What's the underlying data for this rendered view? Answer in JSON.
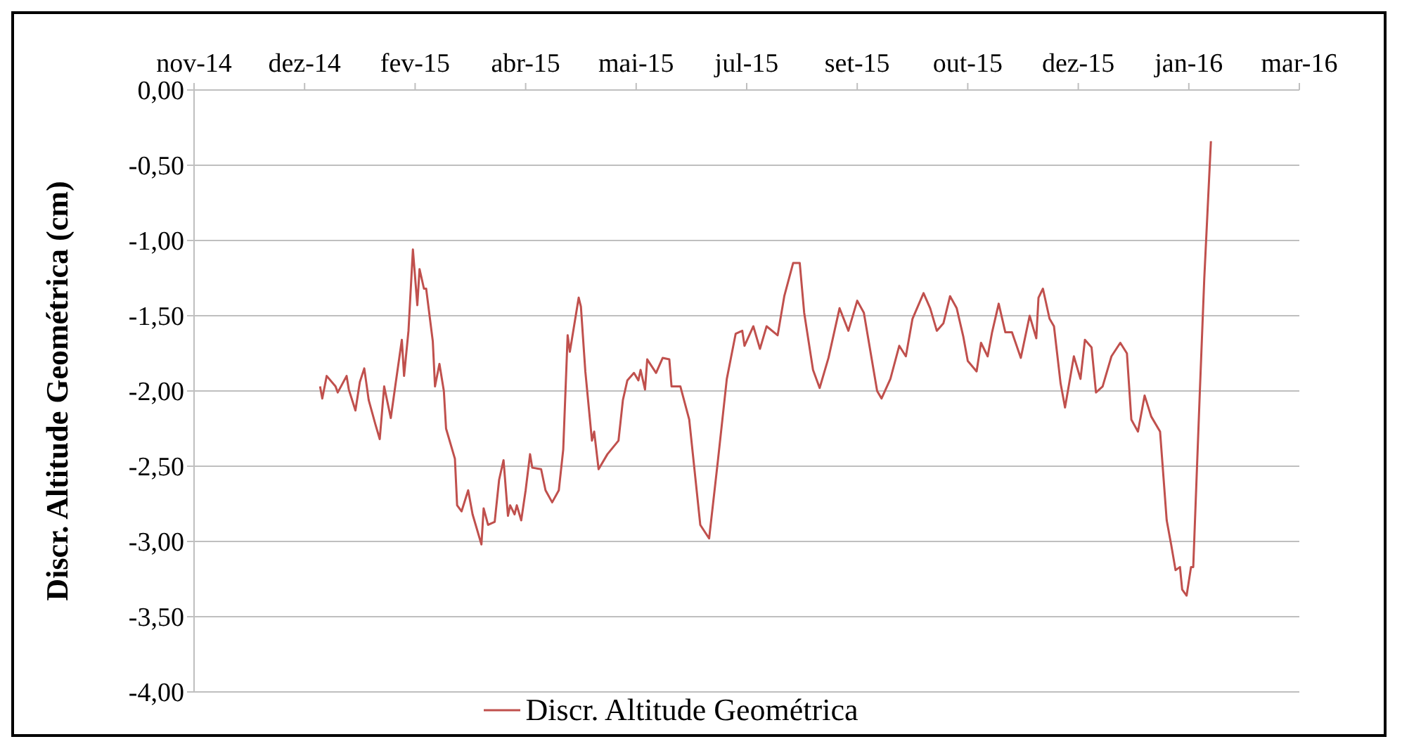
{
  "chart_data": {
    "type": "line",
    "ylabel": "Discr. Altitude Geométrica (cm)",
    "xlim": [
      "2014-11-05",
      "2016-03-19"
    ],
    "xticks": [
      {
        "value": "2014-11-05",
        "label": "nov-14"
      },
      {
        "value": "2014-12-25",
        "label": "dez-14"
      },
      {
        "value": "2015-02-13",
        "label": "fev-15"
      },
      {
        "value": "2015-04-04",
        "label": "abr-15"
      },
      {
        "value": "2015-05-24",
        "label": "mai-15"
      },
      {
        "value": "2015-07-13",
        "label": "jul-15"
      },
      {
        "value": "2015-09-01",
        "label": "set-15"
      },
      {
        "value": "2015-10-21",
        "label": "out-15"
      },
      {
        "value": "2015-12-10",
        "label": "dez-15"
      },
      {
        "value": "2016-01-29",
        "label": "jan-16"
      },
      {
        "value": "2016-03-19",
        "label": "mar-16"
      }
    ],
    "ylim": [
      -4,
      0
    ],
    "yticks": [
      {
        "value": 0,
        "label": "0,00"
      },
      {
        "value": -0.5,
        "label": "-0,50"
      },
      {
        "value": -1,
        "label": "-1,00"
      },
      {
        "value": -1.5,
        "label": "-1,50"
      },
      {
        "value": -2,
        "label": "-2,00"
      },
      {
        "value": -2.5,
        "label": "-2,50"
      },
      {
        "value": -3,
        "label": "-3,00"
      },
      {
        "value": -3.5,
        "label": "-3,50"
      },
      {
        "value": -4,
        "label": "-4,00"
      }
    ],
    "grid": "y",
    "legend": "bottom",
    "marker": "none",
    "line_style": "solid",
    "x": [
      "2015-01-01",
      "2015-01-02",
      "2015-01-04",
      "2015-01-08",
      "2015-01-09",
      "2015-01-13",
      "2015-01-14",
      "2015-01-17",
      "2015-01-19",
      "2015-01-21",
      "2015-01-23",
      "2015-01-26",
      "2015-01-28",
      "2015-01-30",
      "2015-02-02",
      "2015-02-04",
      "2015-02-07",
      "2015-02-08",
      "2015-02-10",
      "2015-02-12",
      "2015-02-14",
      "2015-02-15",
      "2015-02-17",
      "2015-02-18",
      "2015-02-21",
      "2015-02-22",
      "2015-02-24",
      "2015-02-26",
      "2015-02-27",
      "2015-03-03",
      "2015-03-04",
      "2015-03-06",
      "2015-03-09",
      "2015-03-11",
      "2015-03-15",
      "2015-03-16",
      "2015-03-18",
      "2015-03-21",
      "2015-03-23",
      "2015-03-25",
      "2015-03-27",
      "2015-03-28",
      "2015-03-30",
      "2015-03-31",
      "2015-04-02",
      "2015-04-04",
      "2015-04-06",
      "2015-04-07",
      "2015-04-11",
      "2015-04-13",
      "2015-04-16",
      "2015-04-19",
      "2015-04-21",
      "2015-04-23",
      "2015-04-24",
      "2015-04-28",
      "2015-04-29",
      "2015-05-01",
      "2015-05-04",
      "2015-05-05",
      "2015-05-07",
      "2015-05-11",
      "2015-05-16",
      "2015-05-18",
      "2015-05-20",
      "2015-05-23",
      "2015-05-25",
      "2015-05-26",
      "2015-05-28",
      "2015-05-29",
      "2015-06-02",
      "2015-06-05",
      "2015-06-08",
      "2015-06-09",
      "2015-06-13",
      "2015-06-17",
      "2015-06-22",
      "2015-06-26",
      "2015-06-30",
      "2015-07-04",
      "2015-07-08",
      "2015-07-11",
      "2015-07-12",
      "2015-07-16",
      "2015-07-19",
      "2015-07-22",
      "2015-07-27",
      "2015-07-30",
      "2015-08-03",
      "2015-08-06",
      "2015-08-08",
      "2015-08-12",
      "2015-08-15",
      "2015-08-19",
      "2015-08-24",
      "2015-08-28",
      "2015-09-01",
      "2015-09-04",
      "2015-09-10",
      "2015-09-12",
      "2015-09-16",
      "2015-09-20",
      "2015-09-23",
      "2015-09-26",
      "2015-10-01",
      "2015-10-04",
      "2015-10-07",
      "2015-10-10",
      "2015-10-13",
      "2015-10-16",
      "2015-10-19",
      "2015-10-21",
      "2015-10-25",
      "2015-10-27",
      "2015-10-30",
      "2015-11-01",
      "2015-11-04",
      "2015-11-07",
      "2015-11-10",
      "2015-11-14",
      "2015-11-18",
      "2015-11-21",
      "2015-11-22",
      "2015-11-24",
      "2015-11-27",
      "2015-11-29",
      "2015-12-02",
      "2015-12-04",
      "2015-12-08",
      "2015-12-11",
      "2015-12-13",
      "2015-12-16",
      "2015-12-18",
      "2015-12-21",
      "2015-12-25",
      "2015-12-29",
      "2016-01-01",
      "2016-01-03",
      "2016-01-06",
      "2016-01-09",
      "2016-01-12",
      "2016-01-16",
      "2016-01-19",
      "2016-01-21",
      "2016-01-23",
      "2016-01-25",
      "2016-01-26",
      "2016-01-28",
      "2016-01-30",
      "2016-01-31",
      "2016-02-03",
      "2016-02-05",
      "2016-02-08"
    ],
    "series": [
      {
        "name": "Discr. Altitude Geométrica",
        "color": "#c0504d",
        "values": [
          -1.97,
          -2.05,
          -1.9,
          -1.97,
          -2.01,
          -1.9,
          -1.99,
          -2.13,
          -1.94,
          -1.85,
          -2.06,
          -2.22,
          -2.32,
          -1.97,
          -2.18,
          -1.97,
          -1.66,
          -1.9,
          -1.6,
          -1.06,
          -1.43,
          -1.19,
          -1.32,
          -1.32,
          -1.67,
          -1.97,
          -1.82,
          -2.0,
          -2.25,
          -2.45,
          -2.76,
          -2.8,
          -2.66,
          -2.82,
          -3.02,
          -2.78,
          -2.89,
          -2.87,
          -2.59,
          -2.46,
          -2.83,
          -2.76,
          -2.82,
          -2.76,
          -2.86,
          -2.66,
          -2.42,
          -2.51,
          -2.52,
          -2.66,
          -2.74,
          -2.66,
          -2.39,
          -1.63,
          -1.74,
          -1.38,
          -1.44,
          -1.87,
          -2.33,
          -2.27,
          -2.52,
          -2.42,
          -2.33,
          -2.06,
          -1.93,
          -1.88,
          -1.93,
          -1.86,
          -1.99,
          -1.79,
          -1.88,
          -1.78,
          -1.79,
          -1.97,
          -1.97,
          -2.19,
          -2.89,
          -2.98,
          -2.46,
          -1.92,
          -1.62,
          -1.6,
          -1.7,
          -1.57,
          -1.72,
          -1.57,
          -1.63,
          -1.37,
          -1.15,
          -1.15,
          -1.48,
          -1.86,
          -1.98,
          -1.78,
          -1.45,
          -1.6,
          -1.4,
          -1.48,
          -2.0,
          -2.05,
          -1.92,
          -1.7,
          -1.77,
          -1.52,
          -1.35,
          -1.45,
          -1.6,
          -1.55,
          -1.37,
          -1.45,
          -1.64,
          -1.8,
          -1.87,
          -1.68,
          -1.77,
          -1.61,
          -1.42,
          -1.61,
          -1.61,
          -1.78,
          -1.5,
          -1.65,
          -1.38,
          -1.32,
          -1.52,
          -1.57,
          -1.95,
          -2.11,
          -1.77,
          -1.92,
          -1.66,
          -1.71,
          -2.01,
          -1.97,
          -1.77,
          -1.68,
          -1.75,
          -2.19,
          -2.27,
          -2.03,
          -2.17,
          -2.27,
          -2.86,
          -3.02,
          -3.19,
          -3.17,
          -3.32,
          -3.36,
          -3.17,
          -3.17,
          -2.0,
          -1.25,
          -0.34
        ]
      }
    ]
  }
}
